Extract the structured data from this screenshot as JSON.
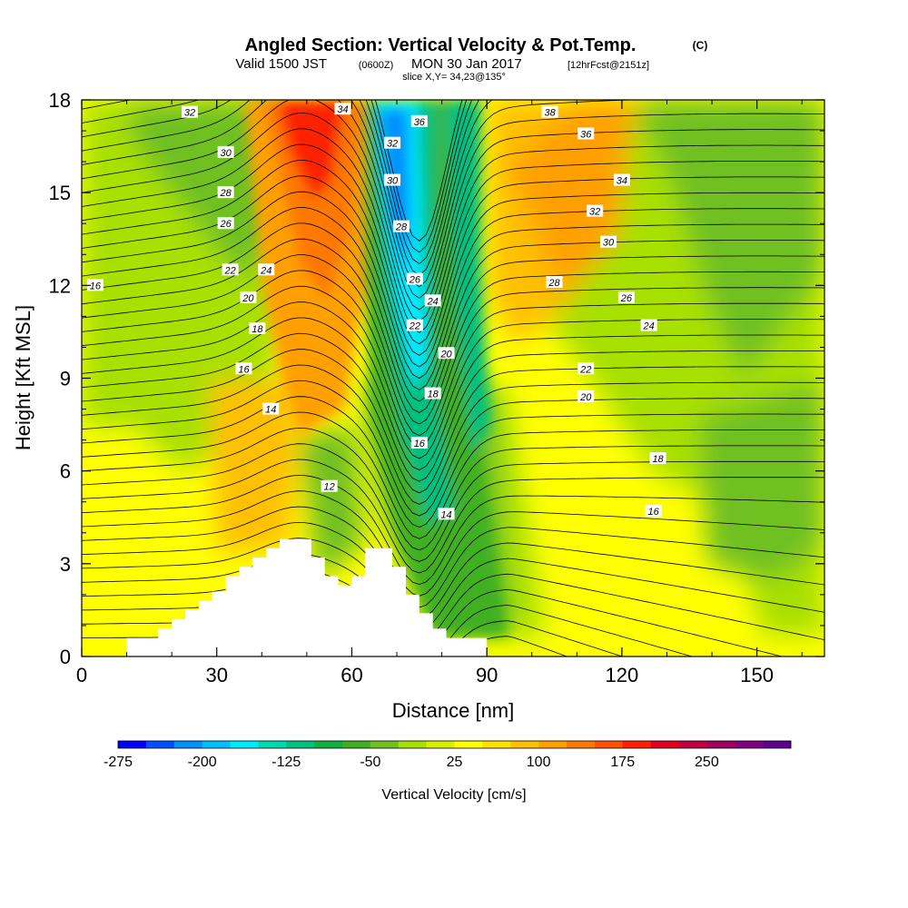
{
  "header": {
    "title": "Angled Section: Vertical Velocity & Pot.Temp.",
    "title_unit": "(C)",
    "valid_prefix": "Valid 1500 JST",
    "valid_utc": "(0600Z)",
    "valid_date": "MON 30 Jan 2017",
    "forecast": "[12hrFcst@2151z]",
    "slice": "slice X,Y= 34,23@135°"
  },
  "colorbar": {
    "title": "Vertical Velocity [cm/s]",
    "colors": [
      "#0000ff",
      "#0050ff",
      "#0090ff",
      "#00c0ff",
      "#00eaff",
      "#00d8b0",
      "#00c080",
      "#10b040",
      "#40b020",
      "#70c020",
      "#a8e000",
      "#d8f000",
      "#ffff00",
      "#ffe000",
      "#ffc000",
      "#ffa000",
      "#ff7800",
      "#ff5000",
      "#ff2000",
      "#e00020",
      "#c00040",
      "#a00060",
      "#800080",
      "#600090"
    ],
    "tick_labels": [
      "-275",
      "-200",
      "-125",
      "-50",
      "25",
      "100",
      "175",
      "250"
    ]
  },
  "chart_data": {
    "type": "heatmap",
    "title": "Angled Section: Vertical Velocity & Pot.Temp.",
    "xlabel": "Distance [nm]",
    "ylabel": "Height [Kft MSL]",
    "xlim": [
      0,
      165
    ],
    "ylim": [
      0,
      18
    ],
    "x_ticks": [
      "0",
      "30",
      "60",
      "90",
      "120",
      "150"
    ],
    "y_ticks": [
      "0",
      "3",
      "6",
      "9",
      "12",
      "15",
      "18"
    ],
    "terrain": [
      [
        0,
        0
      ],
      [
        5,
        0
      ],
      [
        10,
        0
      ],
      [
        10,
        0.6
      ],
      [
        17,
        0.6
      ],
      [
        17,
        0.9
      ],
      [
        20,
        0.9
      ],
      [
        20,
        1.2
      ],
      [
        23,
        1.2
      ],
      [
        23,
        1.5
      ],
      [
        26,
        1.5
      ],
      [
        26,
        1.8
      ],
      [
        29,
        1.8
      ],
      [
        29,
        2.1
      ],
      [
        32,
        2.1
      ],
      [
        32,
        2.6
      ],
      [
        35,
        2.6
      ],
      [
        35,
        2.9
      ],
      [
        38,
        2.9
      ],
      [
        38,
        3.2
      ],
      [
        41,
        3.2
      ],
      [
        41,
        3.5
      ],
      [
        44,
        3.5
      ],
      [
        44,
        3.8
      ],
      [
        51,
        3.8
      ],
      [
        51,
        3.2
      ],
      [
        54,
        3.2
      ],
      [
        54,
        2.6
      ],
      [
        57,
        2.6
      ],
      [
        57,
        2.3
      ],
      [
        60,
        2.3
      ],
      [
        60,
        2.6
      ],
      [
        63,
        2.6
      ],
      [
        63,
        3.5
      ],
      [
        69,
        3.5
      ],
      [
        69,
        2.9
      ],
      [
        72,
        2.9
      ],
      [
        72,
        2.0
      ],
      [
        75,
        2.0
      ],
      [
        75,
        1.4
      ],
      [
        78,
        1.4
      ],
      [
        78,
        0.9
      ],
      [
        81,
        0.9
      ],
      [
        81,
        0.6
      ],
      [
        90,
        0.6
      ],
      [
        90,
        0
      ],
      [
        165,
        0
      ]
    ],
    "contour_labels": [
      {
        "v": "34",
        "x": 58,
        "y": 17.7
      },
      {
        "v": "36",
        "x": 75,
        "y": 17.3
      },
      {
        "v": "32",
        "x": 24,
        "y": 17.6
      },
      {
        "v": "38",
        "x": 104,
        "y": 17.6
      },
      {
        "v": "36",
        "x": 112,
        "y": 16.9
      },
      {
        "v": "32",
        "x": 69,
        "y": 16.6
      },
      {
        "v": "30",
        "x": 32,
        "y": 16.3
      },
      {
        "v": "30",
        "x": 69,
        "y": 15.4
      },
      {
        "v": "34",
        "x": 120,
        "y": 15.4
      },
      {
        "v": "28",
        "x": 32,
        "y": 15.0
      },
      {
        "v": "32",
        "x": 114,
        "y": 14.4
      },
      {
        "v": "26",
        "x": 32,
        "y": 14.0
      },
      {
        "v": "28",
        "x": 71,
        "y": 13.9
      },
      {
        "v": "30",
        "x": 117,
        "y": 13.4
      },
      {
        "v": "22",
        "x": 33,
        "y": 12.5
      },
      {
        "v": "24",
        "x": 41,
        "y": 12.5
      },
      {
        "v": "26",
        "x": 74,
        "y": 12.2
      },
      {
        "v": "28",
        "x": 105,
        "y": 12.1
      },
      {
        "v": "16",
        "x": 3,
        "y": 12.0
      },
      {
        "v": "20",
        "x": 37,
        "y": 11.6
      },
      {
        "v": "24",
        "x": 78,
        "y": 11.5
      },
      {
        "v": "26",
        "x": 121,
        "y": 11.6
      },
      {
        "v": "22",
        "x": 74,
        "y": 10.7
      },
      {
        "v": "24",
        "x": 126,
        "y": 10.7
      },
      {
        "v": "18",
        "x": 39,
        "y": 10.6
      },
      {
        "v": "20",
        "x": 81,
        "y": 9.8
      },
      {
        "v": "16",
        "x": 36,
        "y": 9.3
      },
      {
        "v": "22",
        "x": 112,
        "y": 9.3
      },
      {
        "v": "18",
        "x": 78,
        "y": 8.5
      },
      {
        "v": "20",
        "x": 112,
        "y": 8.4
      },
      {
        "v": "14",
        "x": 42,
        "y": 8.0
      },
      {
        "v": "16",
        "x": 75,
        "y": 6.9
      },
      {
        "v": "18",
        "x": 128,
        "y": 6.4
      },
      {
        "v": "12",
        "x": 55,
        "y": 5.5
      },
      {
        "v": "14",
        "x": 81,
        "y": 4.6
      },
      {
        "v": "16",
        "x": 127,
        "y": 4.7
      }
    ]
  }
}
